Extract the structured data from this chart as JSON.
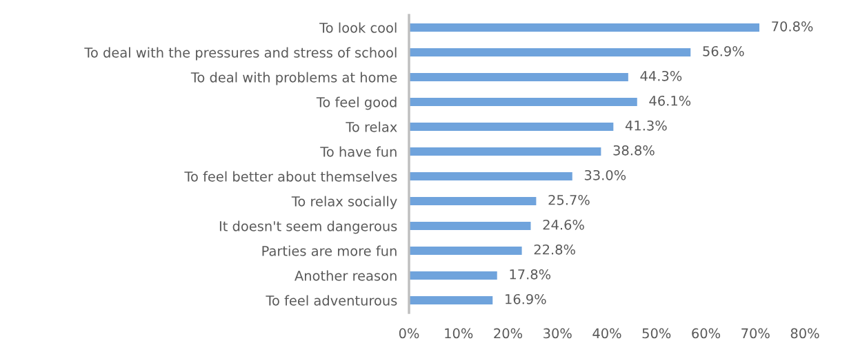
{
  "chart_data": {
    "type": "bar",
    "orientation": "horizontal",
    "categories": [
      "To look cool",
      "To deal with the pressures and stress of school",
      "To deal with problems at home",
      "To feel good",
      "To relax",
      "To have fun",
      "To feel better about themselves",
      "To relax socially",
      "It doesn't seem dangerous",
      "Parties are more fun",
      "Another reason",
      "To feel adventurous"
    ],
    "values": [
      70.8,
      56.9,
      44.3,
      46.1,
      41.3,
      38.8,
      33.0,
      25.7,
      24.6,
      22.8,
      17.8,
      16.9
    ],
    "value_labels": [
      "70.8%",
      "56.9%",
      "44.3%",
      "46.1%",
      "41.3%",
      "38.8%",
      "33.0%",
      "25.7%",
      "24.6%",
      "22.8%",
      "17.8%",
      "16.9%"
    ],
    "color": "#6fa3dc",
    "xlim": [
      0,
      80
    ],
    "xticks": [
      {
        "value": 0,
        "label": "0%"
      },
      {
        "value": 10,
        "label": "10%"
      },
      {
        "value": 20,
        "label": "20%"
      },
      {
        "value": 30,
        "label": "30%"
      },
      {
        "value": 40,
        "label": "40%"
      },
      {
        "value": 50,
        "label": "50%"
      },
      {
        "value": 60,
        "label": "60%"
      },
      {
        "value": 70,
        "label": "70%"
      },
      {
        "value": 80,
        "label": "80%"
      }
    ],
    "grid": false,
    "legend": false
  }
}
